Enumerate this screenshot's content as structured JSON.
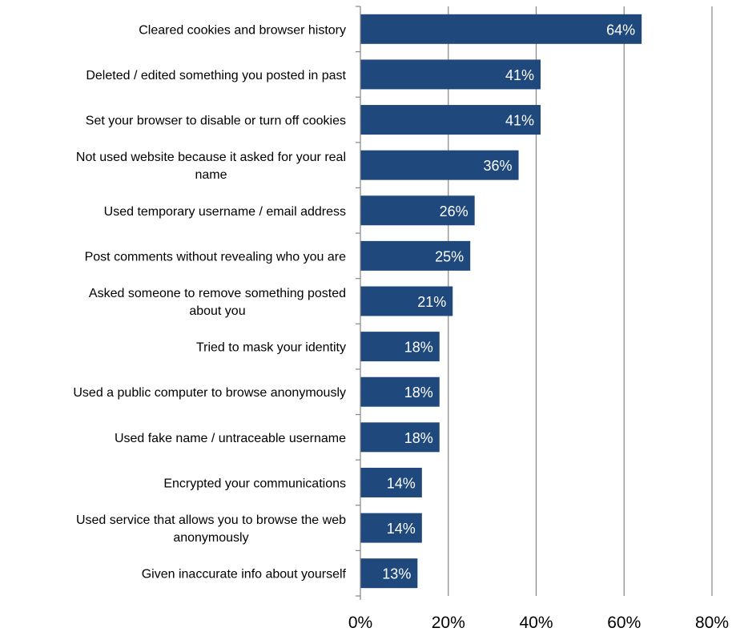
{
  "chart_data": {
    "type": "bar",
    "orientation": "horizontal",
    "categories": [
      [
        "Cleared cookies and browser history"
      ],
      [
        "Deleted / edited something you posted in past"
      ],
      [
        "Set your browser to disable or turn off cookies"
      ],
      [
        "Not used website because it asked for your real",
        "name"
      ],
      [
        "Used temporary username / email address"
      ],
      [
        "Post comments without revealing who you are"
      ],
      [
        "Asked someone to remove something posted",
        "about you"
      ],
      [
        "Tried to mask your identity"
      ],
      [
        "Used a public computer to browse anonymously"
      ],
      [
        "Used fake name / untraceable username"
      ],
      [
        "Encrypted your communications"
      ],
      [
        "Used service that allows you to browse the web",
        "anonymously"
      ],
      [
        "Given inaccurate info about yourself"
      ]
    ],
    "values": [
      64,
      41,
      41,
      36,
      26,
      25,
      21,
      18,
      18,
      18,
      14,
      14,
      13
    ],
    "value_labels": [
      "64%",
      "41%",
      "41%",
      "36%",
      "26%",
      "25%",
      "21%",
      "18%",
      "18%",
      "18%",
      "14%",
      "14%",
      "13%"
    ],
    "xlim": [
      0,
      80
    ],
    "ticks": [
      0,
      20,
      40,
      60,
      80
    ],
    "tick_labels": [
      "0%",
      "20%",
      "40%",
      "60%",
      "80%"
    ],
    "grid": "vertical",
    "bar_color": "#1f497d",
    "grid_color": "#868686"
  }
}
